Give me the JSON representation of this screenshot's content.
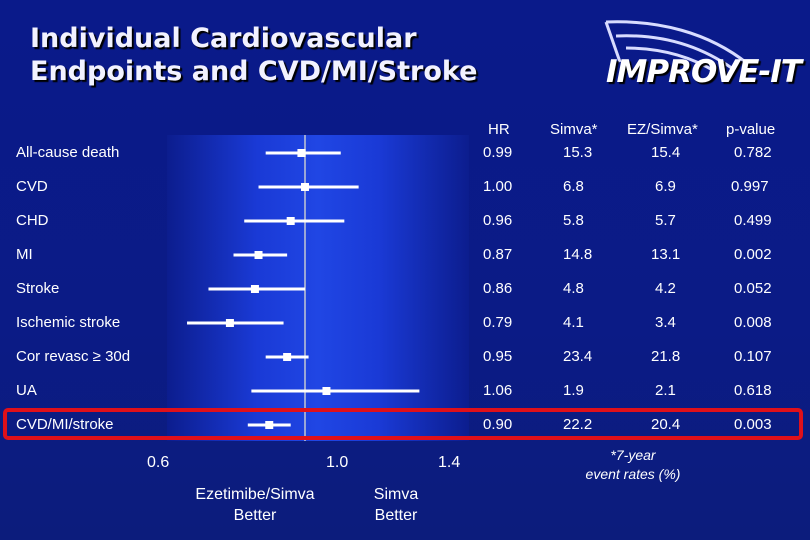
{
  "title_lines": [
    "Individual Cardiovascular",
    "Endpoints and CVD/MI/Stroke"
  ],
  "logo": {
    "text": "IMPROVE-IT"
  },
  "columns": {
    "hr": "HR",
    "simva": "Simva*",
    "ez": "EZ/Simva*",
    "p": "p-value"
  },
  "rows": [
    {
      "label": "All-cause death",
      "hr": "0.99",
      "simva": "15.3",
      "ez": "15.4",
      "p": "0.782"
    },
    {
      "label": "CVD",
      "hr": "1.00",
      "simva": "6.8",
      "ez": "6.9",
      "p": "0.997"
    },
    {
      "label": "CHD",
      "hr": "0.96",
      "simva": "5.8",
      "ez": "5.7",
      "p": "0.499"
    },
    {
      "label": "MI",
      "hr": "0.87",
      "simva": "14.8",
      "ez": "13.1",
      "p": "0.002"
    },
    {
      "label": "Stroke",
      "hr": "0.86",
      "simva": "4.8",
      "ez": "4.2",
      "p": "0.052"
    },
    {
      "label": "Ischemic stroke",
      "hr": "0.79",
      "simva": "4.1",
      "ez": "3.4",
      "p": "0.008"
    },
    {
      "label": "Cor revasc ≥ 30d",
      "hr": "0.95",
      "simva": "23.4",
      "ez": "21.8",
      "p": "0.107"
    },
    {
      "label": "UA",
      "hr": "1.06",
      "simva": "1.9",
      "ez": "2.1",
      "p": "0.618"
    },
    {
      "label": "CVD/MI/stroke",
      "hr": "0.90",
      "simva": "22.2",
      "ez": "20.4",
      "p": "0.003"
    }
  ],
  "footnote": {
    "line1": "*7-year",
    "line2": "event rates (%)"
  },
  "favor": {
    "left_line1": "Ezetimibe/Simva",
    "left_line2": "Better",
    "right_line1": "Simva",
    "right_line2": "Better"
  },
  "highlighted_row": "CVD/MI/stroke",
  "colors": {
    "background": "#0b1b86",
    "panel": "#1430c8",
    "highlight": "#e0101a",
    "marker": "#ffffff",
    "reference_line": "#9aa6d6"
  },
  "chart_data": {
    "type": "forest",
    "xlim": [
      0.6,
      1.4
    ],
    "reference": 1.0,
    "ticks": [
      0.6,
      1.0,
      1.4
    ],
    "tick_labels": [
      "0.6",
      "1.0",
      "1.4"
    ],
    "points": [
      {
        "label": "All-cause death",
        "hr": 0.99,
        "lo": 0.89,
        "hi": 1.1
      },
      {
        "label": "CVD",
        "hr": 1.0,
        "lo": 0.87,
        "hi": 1.15
      },
      {
        "label": "CHD",
        "hr": 0.96,
        "lo": 0.83,
        "hi": 1.11
      },
      {
        "label": "MI",
        "hr": 0.87,
        "lo": 0.8,
        "hi": 0.95
      },
      {
        "label": "Stroke",
        "hr": 0.86,
        "lo": 0.73,
        "hi": 1.0
      },
      {
        "label": "Ischemic stroke",
        "hr": 0.79,
        "lo": 0.67,
        "hi": 0.94
      },
      {
        "label": "Cor revasc ≥ 30d",
        "hr": 0.95,
        "lo": 0.89,
        "hi": 1.01
      },
      {
        "label": "UA",
        "hr": 1.06,
        "lo": 0.85,
        "hi": 1.32
      },
      {
        "label": "CVD/MI/stroke",
        "hr": 0.9,
        "lo": 0.84,
        "hi": 0.96
      }
    ]
  }
}
